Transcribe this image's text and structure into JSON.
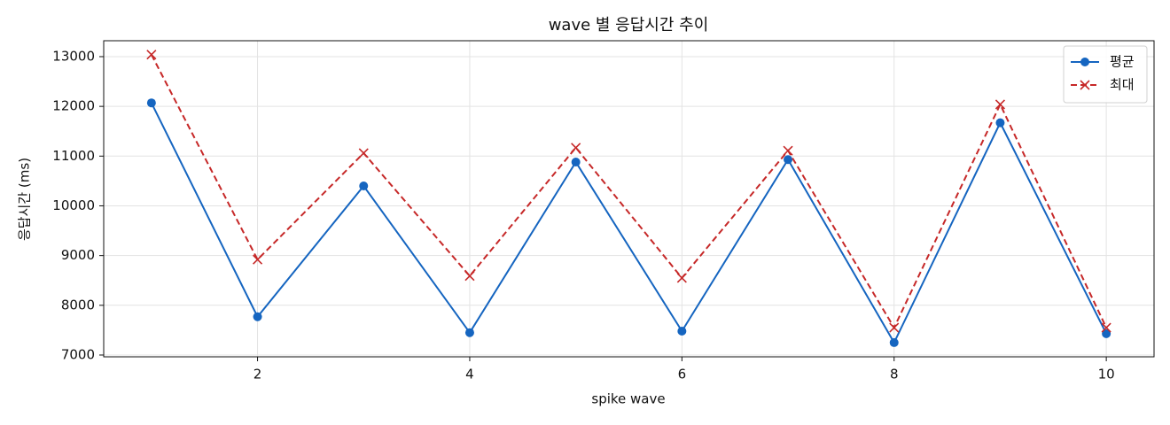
{
  "chart_data": {
    "type": "line",
    "title": "wave 별 응답시간 추이",
    "xlabel": "spike wave",
    "ylabel": "응답시간 (ms)",
    "x": [
      1,
      2,
      3,
      4,
      5,
      6,
      7,
      8,
      9,
      10
    ],
    "series": [
      {
        "name": "평균",
        "color": "#1565c0",
        "marker": "o",
        "linestyle": "solid",
        "values": [
          12070,
          7770,
          10400,
          7450,
          10880,
          7480,
          10930,
          7250,
          11670,
          7430
        ]
      },
      {
        "name": "최대",
        "color": "#c62828",
        "marker": "x",
        "linestyle": "dashed",
        "values": [
          13040,
          8920,
          11060,
          8590,
          11170,
          8550,
          11110,
          7550,
          12040,
          7550
        ]
      }
    ],
    "xlim": [
      0.55,
      10.45
    ],
    "xticks": [
      2,
      4,
      6,
      8,
      10
    ],
    "ylim": [
      6964,
      13320
    ],
    "yticks": [
      7000,
      8000,
      9000,
      10000,
      11000,
      12000,
      13000
    ],
    "grid": true,
    "legend": "upper right"
  }
}
